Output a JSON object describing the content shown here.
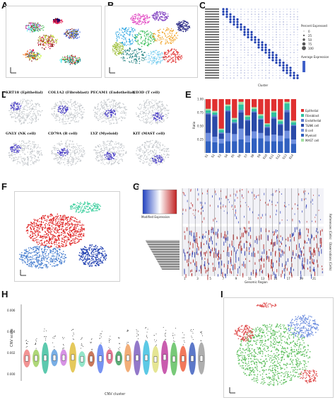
{
  "figure": {
    "panel_letters": [
      "A",
      "B",
      "C",
      "D",
      "E",
      "F",
      "G",
      "H",
      "I"
    ]
  },
  "panel_d": {
    "markers": [
      "KRT18 (Epithelial)",
      "COL1A2 (Fibroblast)",
      "PECAM1 (Endothelial)",
      "CD3D (T cell)",
      "GNLY (NK cell)",
      "CD79A (B cell)",
      "LYZ (Myeloid)",
      "KIT (MAST cell)"
    ]
  },
  "panel_c": {
    "xlabel": "Cluster",
    "legend_title_pct": "Percent Expressed",
    "legend_title_avg": "Average Expression",
    "size_legend": [
      "0",
      "25",
      "50",
      "75",
      "100"
    ]
  },
  "panel_e": {
    "ylabel": "Ratio",
    "ticks": [
      "0.25",
      "0.50",
      "0.75",
      "1.00"
    ],
    "legend": [
      {
        "name": "Epithelial",
        "color": "#e03030"
      },
      {
        "name": "Fibroblast",
        "color": "#30c0a0"
      },
      {
        "name": "Endothelial",
        "color": "#5a7ad0"
      },
      {
        "name": "T&NK cell",
        "color": "#2a4aa8"
      },
      {
        "name": "B cell",
        "color": "#7090e0"
      },
      {
        "name": "Myeloid",
        "color": "#3060c0"
      },
      {
        "name": "MAST cell",
        "color": "#a0e0a0"
      }
    ]
  },
  "panel_g": {
    "xlabel": "Genomic Region",
    "ylabel_top": "References (Cells)",
    "ylabel_bottom": "Observations (Cells)",
    "colorkey": "Modified Expression",
    "chromosomes": [
      "1",
      "2",
      "3",
      "4",
      "5",
      "6",
      "7",
      "8",
      "9",
      "10",
      "11",
      "12",
      "13",
      "14",
      "15",
      "16",
      "17",
      "18",
      "19",
      "20",
      "21",
      "22"
    ]
  },
  "panel_h": {
    "ylabel": "CNV score",
    "xlabel": "CNV cluster",
    "yticks": [
      "0.000",
      "0.002",
      "0.004",
      "0.006"
    ]
  },
  "chart_data": {
    "type": "bar",
    "title": "",
    "ylabel": "Ratio",
    "ylim": [
      0,
      1
    ],
    "categories": [
      "S1",
      "S2",
      "S3",
      "S4",
      "S5",
      "S6",
      "S7",
      "S8",
      "S9",
      "S10",
      "S11",
      "S12",
      "S13",
      "S14"
    ],
    "series": [
      {
        "name": "Epithelial",
        "values": [
          0.18,
          0.22,
          0.55,
          0.1,
          0.35,
          0.05,
          0.3,
          0.15,
          0.28,
          0.45,
          0.22,
          0.38,
          0.05,
          0.4
        ]
      },
      {
        "name": "Fibroblast",
        "values": [
          0.05,
          0.04,
          0.05,
          0.08,
          0.05,
          0.1,
          0.05,
          0.05,
          0.05,
          0.04,
          0.08,
          0.05,
          0.12,
          0.05
        ]
      },
      {
        "name": "Endothelial",
        "values": [
          0.02,
          0.03,
          0.02,
          0.02,
          0.02,
          0.05,
          0.02,
          0.02,
          0.02,
          0.02,
          0.03,
          0.02,
          0.04,
          0.02
        ]
      },
      {
        "name": "T&NK cell",
        "values": [
          0.35,
          0.38,
          0.1,
          0.4,
          0.2,
          0.3,
          0.28,
          0.35,
          0.25,
          0.15,
          0.3,
          0.2,
          0.35,
          0.25
        ]
      },
      {
        "name": "B cell",
        "values": [
          0.15,
          0.1,
          0.08,
          0.15,
          0.13,
          0.2,
          0.12,
          0.13,
          0.1,
          0.1,
          0.12,
          0.1,
          0.14,
          0.08
        ]
      },
      {
        "name": "Myeloid",
        "values": [
          0.22,
          0.2,
          0.18,
          0.22,
          0.22,
          0.25,
          0.2,
          0.27,
          0.27,
          0.22,
          0.22,
          0.22,
          0.27,
          0.17
        ]
      },
      {
        "name": "MAST cell",
        "values": [
          0.03,
          0.03,
          0.02,
          0.03,
          0.03,
          0.05,
          0.03,
          0.03,
          0.03,
          0.02,
          0.03,
          0.03,
          0.03,
          0.03
        ]
      }
    ]
  }
}
